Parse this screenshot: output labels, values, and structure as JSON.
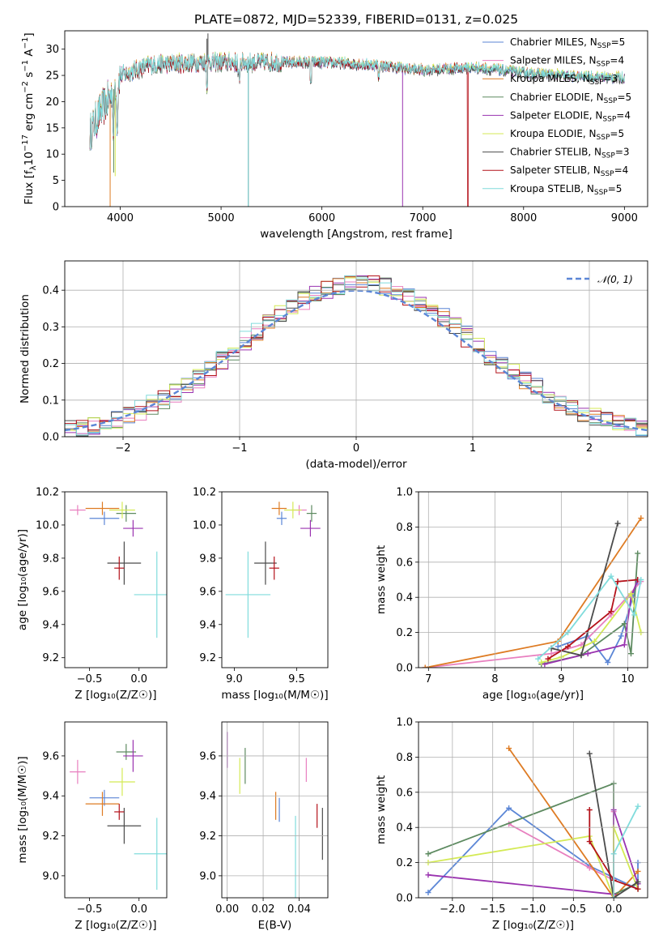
{
  "figure_title": "PLATE=0872, MJD=52339, FIBERID=0131, z=0.025",
  "colors": {
    "Chabrier MILES": "#5b86d6",
    "Salpeter MILES": "#e87fbf",
    "Kroupa MILES": "#de7b23",
    "Chabrier ELODIE": "#5d8a60",
    "Salpeter ELODIE": "#9a33b0",
    "Kroupa ELODIE": "#d4ea55",
    "Chabrier STELIB": "#4b4b4b",
    "Salpeter STELIB": "#b4121a",
    "Kroupa STELIB": "#80dcdc"
  },
  "chart_data": [
    {
      "id": "spectrum",
      "type": "line",
      "xlabel": "wavelength [Angstrom, rest frame]",
      "ylabel": "Flux [f",
      "xlim": [
        3450,
        9230
      ],
      "ylim": [
        0,
        33.5
      ],
      "xticks": [
        4000,
        5000,
        6000,
        7000,
        8000,
        9000
      ],
      "yticks": [
        0,
        5,
        10,
        15,
        20,
        25,
        30
      ],
      "legend_position": "top-right",
      "legend": [
        {
          "name": "Chabrier MILES",
          "nssp": "5"
        },
        {
          "name": "Salpeter MILES",
          "nssp": "4"
        },
        {
          "name": "Kroupa MILES",
          "nssp": "3"
        },
        {
          "name": "Chabrier ELODIE",
          "nssp": "5"
        },
        {
          "name": "Salpeter ELODIE",
          "nssp": "4"
        },
        {
          "name": "Kroupa ELODIE",
          "nssp": "5"
        },
        {
          "name": "Chabrier STELIB",
          "nssp": "3"
        },
        {
          "name": "Salpeter STELIB",
          "nssp": "4"
        },
        {
          "name": "Kroupa STELIB",
          "nssp": "5"
        }
      ],
      "continuum": {
        "x": [
          3700,
          3800,
          3900,
          4000,
          4300,
          4800,
          5500,
          6000,
          6500,
          7000,
          7500,
          8000,
          8500,
          9000
        ],
        "y": [
          14,
          18,
          21,
          25,
          27,
          27.5,
          27.5,
          27.5,
          27,
          26,
          26.5,
          25.5,
          24.8,
          24.5
        ]
      }
    },
    {
      "id": "residuals",
      "type": "histogram",
      "xlabel": "(data-model)/error",
      "ylabel": "Normed distribution",
      "xlim": [
        -2.5,
        2.5
      ],
      "ylim": [
        0,
        0.48
      ],
      "xticks": [
        -2,
        -1,
        0,
        1,
        2
      ],
      "yticks": [
        0.0,
        0.1,
        0.2,
        0.3,
        0.4
      ],
      "grid": true,
      "legend_position": "top-right",
      "reference": "𝒩(0, 1)",
      "bin_width": 0.1
    },
    {
      "id": "age-vs-Z",
      "type": "scatter",
      "xlabel": "Z [log₁₀(Z/Z☉)]",
      "ylabel": "age  [log₁₀(age/yr)]",
      "xlim": [
        -0.75,
        0.28
      ],
      "ylim": [
        9.14,
        10.2
      ],
      "xticks": [
        -0.5,
        0.0
      ],
      "yticks": [
        9.2,
        9.4,
        9.6,
        9.8,
        10.0,
        10.2
      ],
      "points": [
        {
          "model": "Chabrier MILES",
          "x": -0.35,
          "xerr": 0.15,
          "y": 10.04,
          "yerr": 0.04
        },
        {
          "model": "Salpeter MILES",
          "x": -0.62,
          "xerr": 0.08,
          "y": 10.09,
          "yerr": 0.03
        },
        {
          "model": "Kroupa MILES",
          "x": -0.37,
          "xerr": 0.17,
          "y": 10.1,
          "yerr": 0.04
        },
        {
          "model": "Chabrier ELODIE",
          "x": -0.13,
          "xerr": 0.1,
          "y": 10.07,
          "yerr": 0.05
        },
        {
          "model": "Salpeter ELODIE",
          "x": -0.06,
          "xerr": 0.1,
          "y": 9.98,
          "yerr": 0.05
        },
        {
          "model": "Kroupa ELODIE",
          "x": -0.17,
          "xerr": 0.13,
          "y": 10.09,
          "yerr": 0.05
        },
        {
          "model": "Chabrier STELIB",
          "x": -0.15,
          "xerr": 0.17,
          "y": 9.77,
          "yerr": 0.13
        },
        {
          "model": "Salpeter STELIB",
          "x": -0.2,
          "xerr": 0.05,
          "y": 9.74,
          "yerr": 0.07
        },
        {
          "model": "Kroupa STELIB",
          "x": 0.18,
          "xerr": 0.23,
          "y": 9.58,
          "yerr": 0.26
        }
      ]
    },
    {
      "id": "age-vs-mass",
      "type": "scatter",
      "xlabel": "mass [log₁₀(M/M☉)]",
      "ylabel": "",
      "xlim": [
        8.9,
        9.75
      ],
      "ylim": [
        9.14,
        10.2
      ],
      "xticks": [
        9.0,
        9.5
      ],
      "yticks": [
        9.2,
        9.4,
        9.6,
        9.8,
        10.0,
        10.2
      ],
      "points": [
        {
          "model": "Chabrier MILES",
          "x": 9.38,
          "xerr": 0.04,
          "y": 10.04,
          "yerr": 0.04
        },
        {
          "model": "Salpeter MILES",
          "x": 9.52,
          "xerr": 0.06,
          "y": 10.09,
          "yerr": 0.03
        },
        {
          "model": "Kroupa MILES",
          "x": 9.36,
          "xerr": 0.06,
          "y": 10.1,
          "yerr": 0.04
        },
        {
          "model": "Chabrier ELODIE",
          "x": 9.62,
          "xerr": 0.04,
          "y": 10.07,
          "yerr": 0.05
        },
        {
          "model": "Salpeter ELODIE",
          "x": 9.61,
          "xerr": 0.08,
          "y": 9.98,
          "yerr": 0.05
        },
        {
          "model": "Kroupa ELODIE",
          "x": 9.47,
          "xerr": 0.07,
          "y": 10.09,
          "yerr": 0.05
        },
        {
          "model": "Chabrier STELIB",
          "x": 9.25,
          "xerr": 0.09,
          "y": 9.77,
          "yerr": 0.13
        },
        {
          "model": "Salpeter STELIB",
          "x": 9.32,
          "xerr": 0.04,
          "y": 9.74,
          "yerr": 0.07
        },
        {
          "model": "Kroupa STELIB",
          "x": 9.11,
          "xerr": 0.18,
          "y": 9.58,
          "yerr": 0.26
        }
      ]
    },
    {
      "id": "weight-vs-age",
      "type": "line",
      "xlabel": "age  [log₁₀(age/yr)]",
      "ylabel": "mass weight",
      "xlim": [
        6.85,
        10.3
      ],
      "ylim": [
        0,
        1.0
      ],
      "xticks": [
        7,
        8,
        9,
        10
      ],
      "yticks": [
        0.0,
        0.2,
        0.4,
        0.6,
        0.8,
        1.0
      ],
      "grid": true,
      "series": [
        {
          "model": "Chabrier MILES",
          "x": [
            8.95,
            9.4,
            9.7,
            9.9,
            10.15
          ],
          "y": [
            0.12,
            0.18,
            0.03,
            0.18,
            0.49
          ]
        },
        {
          "model": "Salpeter MILES",
          "x": [
            6.95,
            8.85,
            9.3,
            9.75,
            10.2
          ],
          "y": [
            0.0,
            0.08,
            0.13,
            0.3,
            0.49
          ]
        },
        {
          "model": "Kroupa MILES",
          "x": [
            6.95,
            8.95,
            10.2
          ],
          "y": [
            0.0,
            0.15,
            0.85
          ]
        },
        {
          "model": "Chabrier ELODIE",
          "x": [
            8.7,
            9.3,
            9.95,
            10.05,
            10.15
          ],
          "y": [
            0.02,
            0.07,
            0.25,
            0.08,
            0.65
          ]
        },
        {
          "model": "Salpeter ELODIE",
          "x": [
            8.75,
            9.4,
            9.95,
            10.05,
            10.15
          ],
          "y": [
            0.02,
            0.08,
            0.13,
            0.4,
            0.5
          ]
        },
        {
          "model": "Kroupa ELODIE",
          "x": [
            8.7,
            9.0,
            9.5,
            10.05,
            10.2
          ],
          "y": [
            0.03,
            0.06,
            0.15,
            0.42,
            0.2
          ]
        },
        {
          "model": "Chabrier STELIB",
          "x": [
            8.85,
            9.3,
            9.85
          ],
          "y": [
            0.11,
            0.07,
            0.82
          ]
        },
        {
          "model": "Salpeter STELIB",
          "x": [
            8.8,
            9.1,
            9.75,
            9.85,
            10.15
          ],
          "y": [
            0.05,
            0.12,
            0.32,
            0.49,
            0.5
          ]
        },
        {
          "model": "Kroupa STELIB",
          "x": [
            8.65,
            9.1,
            9.75,
            10.1,
            10.2
          ],
          "y": [
            0.05,
            0.2,
            0.52,
            0.3,
            0.5
          ]
        }
      ]
    },
    {
      "id": "mass-vs-Z",
      "type": "scatter",
      "xlabel": "Z [log₁₀(Z/Z☉)]",
      "ylabel": "mass [log₁₀(M/M☉)]",
      "xlim": [
        -0.75,
        0.28
      ],
      "ylim": [
        8.89,
        9.77
      ],
      "xticks": [
        -0.5,
        0.0
      ],
      "yticks": [
        9.0,
        9.2,
        9.4,
        9.6
      ],
      "points": [
        {
          "model": "Chabrier MILES",
          "x": -0.35,
          "xerr": 0.15,
          "y": 9.39,
          "yerr": 0.04
        },
        {
          "model": "Salpeter MILES",
          "x": -0.62,
          "xerr": 0.08,
          "y": 9.52,
          "yerr": 0.06
        },
        {
          "model": "Kroupa MILES",
          "x": -0.37,
          "xerr": 0.17,
          "y": 9.36,
          "yerr": 0.06
        },
        {
          "model": "Chabrier ELODIE",
          "x": -0.13,
          "xerr": 0.1,
          "y": 9.62,
          "yerr": 0.04
        },
        {
          "model": "Salpeter ELODIE",
          "x": -0.06,
          "xerr": 0.1,
          "y": 9.6,
          "yerr": 0.08
        },
        {
          "model": "Kroupa ELODIE",
          "x": -0.17,
          "xerr": 0.13,
          "y": 9.47,
          "yerr": 0.07
        },
        {
          "model": "Chabrier STELIB",
          "x": -0.15,
          "xerr": 0.17,
          "y": 9.25,
          "yerr": 0.09
        },
        {
          "model": "Salpeter STELIB",
          "x": -0.2,
          "xerr": 0.05,
          "y": 9.32,
          "yerr": 0.04
        },
        {
          "model": "Kroupa STELIB",
          "x": 0.18,
          "xerr": 0.23,
          "y": 9.11,
          "yerr": 0.18
        }
      ]
    },
    {
      "id": "mass-vs-ebv",
      "type": "scatter",
      "xlabel": "E(B-V)",
      "ylabel": "",
      "xlim": [
        -0.003,
        0.056
      ],
      "ylim": [
        8.89,
        9.77
      ],
      "xticks": [
        0.0,
        0.02,
        0.04
      ],
      "yticks": [
        9.0,
        9.2,
        9.4,
        9.6
      ],
      "grid": true,
      "points": [
        {
          "model": "Chabrier MILES",
          "x": 0.029,
          "y": 9.33,
          "yerr": 0.06
        },
        {
          "model": "Salpeter MILES",
          "x": 0.044,
          "y": 9.53,
          "yerr": 0.06
        },
        {
          "model": "Kroupa MILES",
          "x": 0.027,
          "y": 9.35,
          "yerr": 0.07
        },
        {
          "model": "Chabrier ELODIE",
          "x": 0.01,
          "y": 9.55,
          "yerr": 0.09
        },
        {
          "model": "Salpeter ELODIE",
          "x": 0.0,
          "y": 9.63,
          "yerr": 0.09
        },
        {
          "model": "Kroupa ELODIE",
          "x": 0.007,
          "y": 9.5,
          "yerr": 0.09
        },
        {
          "model": "Chabrier STELIB",
          "x": 0.053,
          "y": 9.21,
          "yerr": 0.13
        },
        {
          "model": "Salpeter STELIB",
          "x": 0.05,
          "y": 9.3,
          "yerr": 0.06
        },
        {
          "model": "Kroupa STELIB",
          "x": 0.038,
          "y": 9.05,
          "yerr": 0.25
        }
      ]
    },
    {
      "id": "weight-vs-Z",
      "type": "line",
      "xlabel": "Z [log₁₀(Z/Z☉)]",
      "ylabel": "mass weight",
      "xlim": [
        -2.42,
        0.42
      ],
      "ylim": [
        0,
        1.0
      ],
      "xticks": [
        -2.0,
        -1.5,
        -1.0,
        -0.5,
        0.0
      ],
      "yticks": [
        0.0,
        0.2,
        0.4,
        0.6,
        0.8,
        1.0
      ],
      "grid": true,
      "series": [
        {
          "model": "Chabrier MILES",
          "x": [
            -2.3,
            -1.3,
            -0.3,
            0.3,
            0.3
          ],
          "y": [
            0.03,
            0.51,
            0.18,
            0.05,
            0.2
          ]
        },
        {
          "model": "Salpeter MILES",
          "x": [
            -1.3,
            -0.3,
            0.0,
            0.0
          ],
          "y": [
            0.42,
            0.17,
            0.1,
            0.49
          ]
        },
        {
          "model": "Kroupa MILES",
          "x": [
            -1.3,
            0.0,
            0.3
          ],
          "y": [
            0.85,
            0.0,
            0.15
          ]
        },
        {
          "model": "Chabrier ELODIE",
          "x": [
            -2.3,
            0.0,
            0.0,
            0.3
          ],
          "y": [
            0.25,
            0.65,
            0.02,
            0.08
          ]
        },
        {
          "model": "Salpeter ELODIE",
          "x": [
            -2.3,
            0.0,
            0.0,
            0.3
          ],
          "y": [
            0.13,
            0.02,
            0.5,
            0.08
          ]
        },
        {
          "model": "Kroupa ELODIE",
          "x": [
            -2.3,
            -0.3,
            0.0,
            0.0,
            0.3
          ],
          "y": [
            0.2,
            0.35,
            0.0,
            0.4,
            0.05
          ]
        },
        {
          "model": "Chabrier STELIB",
          "x": [
            -0.3,
            0.0,
            0.3
          ],
          "y": [
            0.82,
            0.0,
            0.09
          ]
        },
        {
          "model": "Salpeter STELIB",
          "x": [
            -0.3,
            -0.3,
            0.0,
            0.3
          ],
          "y": [
            0.5,
            0.32,
            0.1,
            0.05
          ]
        },
        {
          "model": "Kroupa STELIB",
          "x": [
            0.0,
            0.0,
            0.3
          ],
          "y": [
            0.0,
            0.25,
            0.52
          ]
        }
      ]
    }
  ]
}
